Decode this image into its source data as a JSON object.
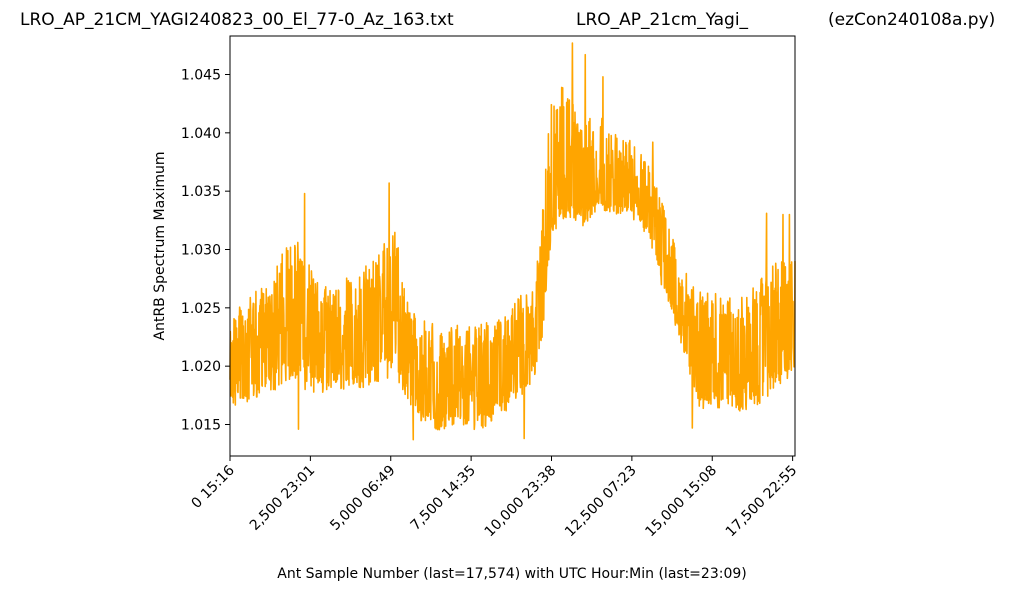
{
  "header": {
    "left_title": "LRO_AP_21CM_YAGI240823_00_El_77-0_Az_163.txt",
    "center_title": "LRO_AP_21cm_Yagi_",
    "right_title": "(ezCon240108a.py)"
  },
  "chart_data": {
    "type": "line",
    "xlabel": "Ant Sample Number (last=17,574) with UTC Hour:Min (last=23:09)",
    "ylabel": "AntRB Spectrum Maximum",
    "xlim": [
      0,
      17574
    ],
    "ylim": [
      1.0123,
      1.0483
    ],
    "line_color": "#ffa500",
    "grid": false,
    "x_ticks": [
      {
        "value": 0,
        "label": "0  15:16"
      },
      {
        "value": 2500,
        "label": "2,500  23:01"
      },
      {
        "value": 5000,
        "label": "5,000  06:49"
      },
      {
        "value": 7500,
        "label": "7,500  14:35"
      },
      {
        "value": 10000,
        "label": "10,000  23:38"
      },
      {
        "value": 12500,
        "label": "12,500  07:23"
      },
      {
        "value": 15000,
        "label": "15,000  15:08"
      },
      {
        "value": 17500,
        "label": "17,500  22:55"
      }
    ],
    "y_ticks": [
      {
        "value": 1.015,
        "label": "1.015"
      },
      {
        "value": 1.02,
        "label": "1.020"
      },
      {
        "value": 1.025,
        "label": "1.025"
      },
      {
        "value": 1.03,
        "label": "1.030"
      },
      {
        "value": 1.035,
        "label": "1.035"
      },
      {
        "value": 1.04,
        "label": "1.040"
      },
      {
        "value": 1.045,
        "label": "1.045"
      }
    ],
    "series": [
      {
        "x": [
          0,
          500,
          1000,
          1500,
          2000,
          2500,
          3000,
          3500,
          4000,
          4500,
          5000,
          5200,
          5500,
          6000,
          6500,
          7000,
          7500,
          8000,
          8500,
          9000,
          9500,
          9700,
          10000,
          10500,
          11000,
          11500,
          12000,
          12500,
          13000,
          13500,
          14000,
          14500,
          15000,
          15500,
          16000,
          16500,
          17000,
          17574
        ],
        "min": [
          1.016,
          1.0165,
          1.0175,
          1.018,
          1.019,
          1.0175,
          1.0175,
          1.018,
          1.018,
          1.0185,
          1.019,
          1.019,
          1.017,
          1.015,
          1.0145,
          1.0148,
          1.0145,
          1.0148,
          1.016,
          1.017,
          1.019,
          1.022,
          1.031,
          1.033,
          1.032,
          1.0335,
          1.033,
          1.033,
          1.031,
          1.026,
          1.022,
          1.0165,
          1.016,
          1.0165,
          1.016,
          1.0165,
          1.018,
          1.0195
        ],
        "mid": [
          1.02,
          1.0205,
          1.0215,
          1.0225,
          1.0245,
          1.023,
          1.0215,
          1.022,
          1.0225,
          1.0235,
          1.025,
          1.0245,
          1.021,
          1.019,
          1.0185,
          1.0185,
          1.0185,
          1.0185,
          1.0195,
          1.021,
          1.023,
          1.026,
          1.0355,
          1.0365,
          1.0355,
          1.036,
          1.0355,
          1.035,
          1.0335,
          1.0295,
          1.025,
          1.021,
          1.0205,
          1.0205,
          1.0205,
          1.0215,
          1.0225,
          1.0235
        ],
        "max": [
          1.0245,
          1.0255,
          1.027,
          1.029,
          1.0315,
          1.0285,
          1.027,
          1.0275,
          1.028,
          1.0295,
          1.032,
          1.0315,
          1.026,
          1.024,
          1.0235,
          1.0235,
          1.0235,
          1.024,
          1.024,
          1.026,
          1.0275,
          1.033,
          1.0445,
          1.044,
          1.0415,
          1.0415,
          1.04,
          1.0395,
          1.0375,
          1.034,
          1.0295,
          1.0265,
          1.0265,
          1.026,
          1.0265,
          1.0275,
          1.029,
          1.0295
        ]
      }
    ],
    "spikes": [
      {
        "x": 2320,
        "y": 1.0348
      },
      {
        "x": 2130,
        "y": 1.0146
      },
      {
        "x": 4950,
        "y": 1.0357
      },
      {
        "x": 5700,
        "y": 1.0137
      },
      {
        "x": 9150,
        "y": 1.0138
      },
      {
        "x": 10650,
        "y": 1.0477
      },
      {
        "x": 11050,
        "y": 1.0467
      },
      {
        "x": 11600,
        "y": 1.0448
      },
      {
        "x": 13150,
        "y": 1.0392
      },
      {
        "x": 14380,
        "y": 1.0147
      },
      {
        "x": 16690,
        "y": 1.0331
      },
      {
        "x": 17200,
        "y": 1.033
      },
      {
        "x": 17400,
        "y": 1.033
      }
    ]
  }
}
